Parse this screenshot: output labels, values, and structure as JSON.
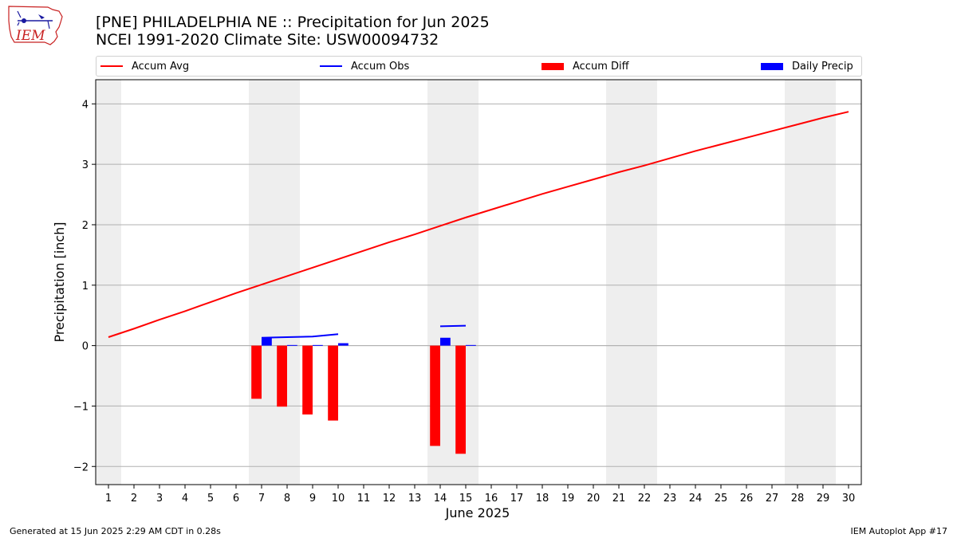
{
  "header": {
    "logo_text": "IEM",
    "title_line1": "[PNE] PHILADELPHIA NE :: Precipitation for Jun 2025",
    "title_line2": "NCEI 1991-2020 Climate Site: USW00094732"
  },
  "legend": {
    "items": [
      {
        "label": "Accum Avg",
        "color": "#ff0000",
        "kind": "line"
      },
      {
        "label": "Accum Obs",
        "color": "#0000ff",
        "kind": "line"
      },
      {
        "label": "Accum Diff",
        "color": "#ff0000",
        "kind": "box"
      },
      {
        "label": "Daily Precip",
        "color": "#0000ff",
        "kind": "box"
      }
    ]
  },
  "footer": {
    "left": "Generated at 15 Jun 2025 2:29 AM CDT in 0.28s",
    "right": "IEM Autoplot App #17"
  },
  "chart_data": {
    "type": "line",
    "xlabel": "June 2025",
    "ylabel": "Precipitation [inch]",
    "xlim": [
      0.5,
      30.5
    ],
    "ylim": [
      -2.3,
      4.4
    ],
    "x_ticks": [
      1,
      2,
      3,
      4,
      5,
      6,
      7,
      8,
      9,
      10,
      11,
      12,
      13,
      14,
      15,
      16,
      17,
      18,
      19,
      20,
      21,
      22,
      23,
      24,
      25,
      26,
      27,
      28,
      29,
      30
    ],
    "y_ticks": [
      -2,
      -1,
      0,
      1,
      2,
      3,
      4
    ],
    "grid": "horizontal",
    "weekend_shading": [
      [
        0.5,
        1.5
      ],
      [
        6.5,
        8.5
      ],
      [
        13.5,
        15.5
      ],
      [
        20.5,
        22.5
      ],
      [
        27.5,
        29.5
      ]
    ],
    "accum_avg": {
      "name": "Accum Avg",
      "color": "#ff0000",
      "x": [
        1,
        2,
        3,
        4,
        5,
        6,
        7,
        8,
        9,
        10,
        11,
        12,
        13,
        14,
        15,
        16,
        17,
        18,
        19,
        20,
        21,
        22,
        23,
        24,
        25,
        26,
        27,
        28,
        29,
        30
      ],
      "values": [
        0.14,
        0.28,
        0.43,
        0.57,
        0.72,
        0.87,
        1.01,
        1.15,
        1.29,
        1.43,
        1.57,
        1.71,
        1.84,
        1.98,
        2.12,
        2.25,
        2.38,
        2.51,
        2.63,
        2.75,
        2.87,
        2.98,
        3.1,
        3.22,
        3.33,
        3.44,
        3.55,
        3.66,
        3.77,
        3.87
      ]
    },
    "accum_obs": {
      "name": "Accum Obs",
      "color": "#0000ff",
      "segments": [
        {
          "x": [
            7,
            8,
            9,
            10
          ],
          "values": [
            0.13,
            0.14,
            0.15,
            0.19
          ]
        },
        {
          "x": [
            14,
            15
          ],
          "values": [
            0.32,
            0.33
          ]
        }
      ]
    },
    "accum_diff": {
      "name": "Accum Diff",
      "color": "#ff0000",
      "x": [
        7,
        8,
        9,
        10,
        14,
        15
      ],
      "values": [
        -0.88,
        -1.01,
        -1.14,
        -1.24,
        -1.66,
        -1.79
      ]
    },
    "daily_precip": {
      "name": "Daily Precip",
      "color": "#0000ff",
      "x": [
        7,
        8,
        9,
        10,
        14,
        15
      ],
      "values": [
        0.13,
        0.01,
        0.01,
        0.04,
        0.13,
        0.01
      ]
    }
  }
}
